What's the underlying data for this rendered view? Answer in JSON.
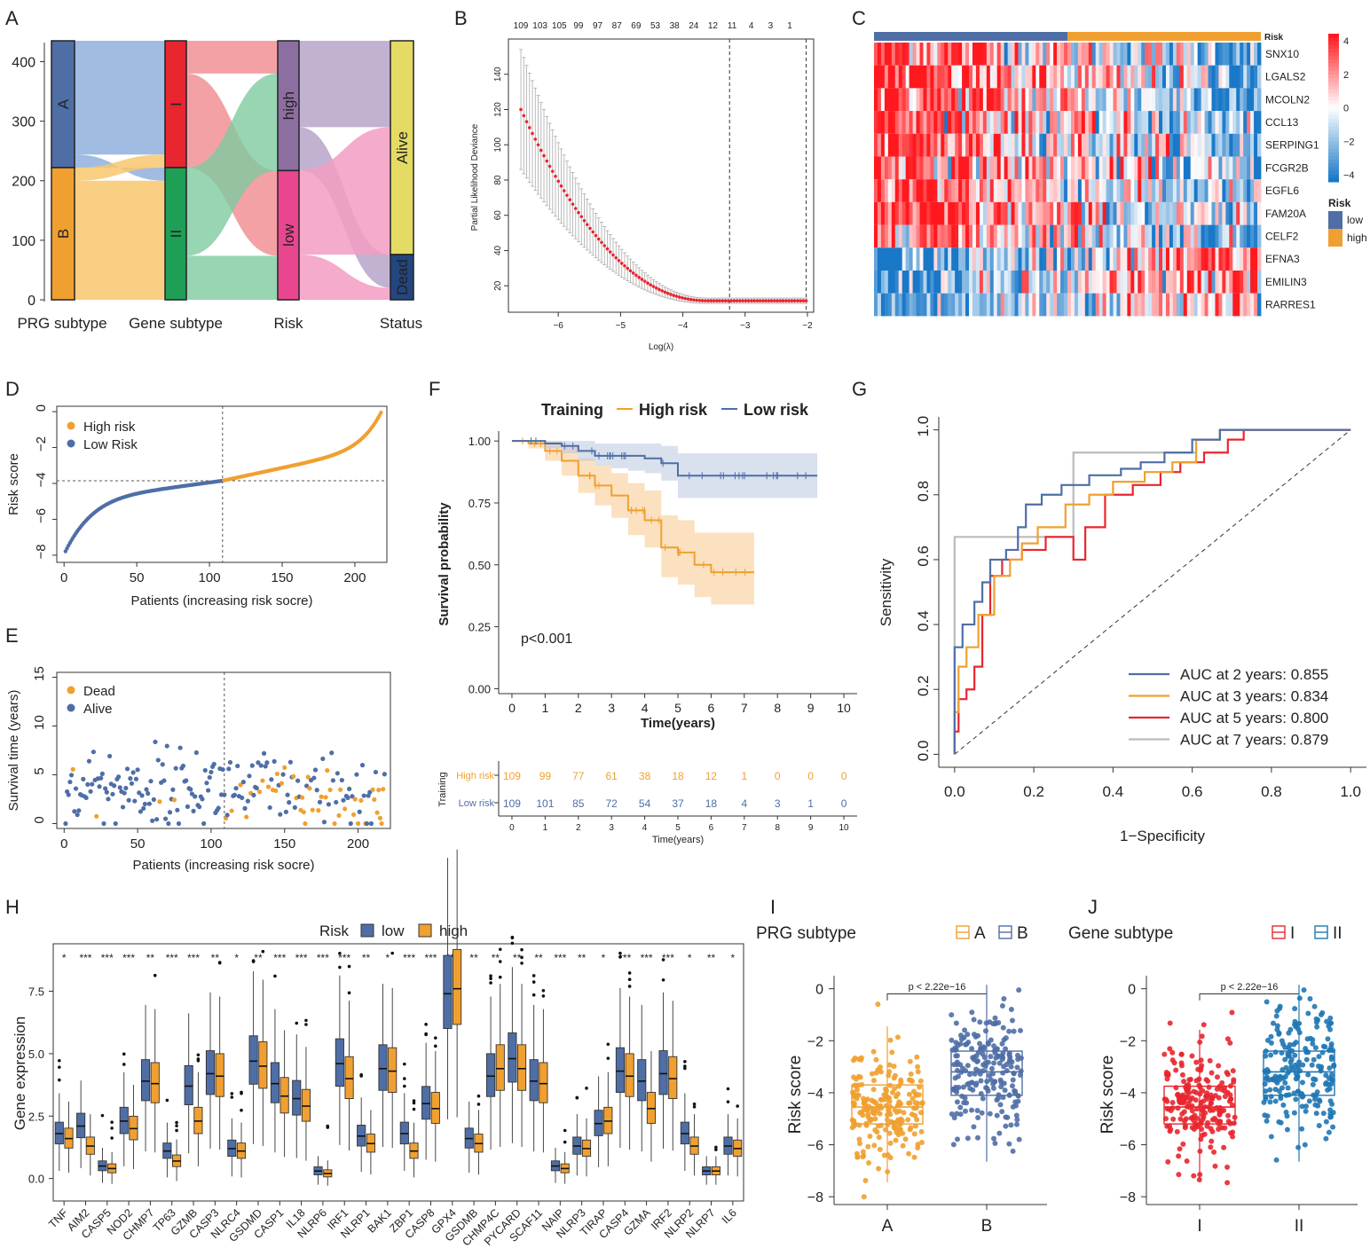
{
  "colors": {
    "orange": "#F0A030",
    "blue": "#4F6EA6",
    "red": "#E8262F",
    "green": "#1F9E56",
    "gray": "#BBBBBB",
    "purple": "#8C6FA0",
    "pink": "#E8478F",
    "yellow": "#E4DB64",
    "navy": "#23467F",
    "lightblue": "#1F77B4"
  },
  "chart_data": [
    {
      "panel": "A",
      "type": "sankey",
      "axes": [
        "PRG subtype",
        "Gene subtype",
        "Risk",
        "Status"
      ],
      "ylim": [
        0,
        435
      ],
      "yticks": [
        0,
        100,
        200,
        300,
        400
      ],
      "nodes": {
        "PRG subtype": [
          {
            "name": "A",
            "value": 213
          },
          {
            "name": "B",
            "value": 222
          }
        ],
        "Gene subtype": [
          {
            "name": "I",
            "value": 213
          },
          {
            "name": "II",
            "value": 222
          }
        ],
        "Risk": [
          {
            "name": "high",
            "value": 218
          },
          {
            "name": "low",
            "value": 217
          }
        ],
        "Status": [
          {
            "name": "Alive",
            "value": 359
          },
          {
            "name": "Dead",
            "value": 76
          }
        ]
      }
    },
    {
      "panel": "B",
      "type": "line",
      "title": "",
      "xlabel": "Log(λ)",
      "ylabel": "Partial Likelihood Deviance",
      "xlim": [
        -6.8,
        -1.9
      ],
      "ylim": [
        5,
        160
      ],
      "xticks": [
        -6,
        -5,
        -4,
        -3,
        -2
      ],
      "yticks": [
        20,
        40,
        60,
        80,
        100,
        120,
        140
      ],
      "top_labels": [
        "109",
        "103",
        "105",
        "99",
        "97",
        "87",
        "69",
        "53",
        "38",
        "24",
        "12",
        "11",
        "4",
        "3",
        "1"
      ],
      "vlines": [
        -3.25,
        -2.02
      ],
      "curve": {
        "x_start": -6.6,
        "x_end": -2.02,
        "y_start": 120,
        "y_end": 11.5
      }
    },
    {
      "panel": "C",
      "type": "heatmap",
      "genes": [
        "SNX10",
        "LGALS2",
        "MCOLN2",
        "CCL13",
        "SERPING1",
        "FCGR2B",
        "EGFL6",
        "FAM20A",
        "CELF2",
        "EFNA3",
        "EMILIN3",
        "RARRES1"
      ],
      "annotation_label": "Risk",
      "legend_title": "Risk",
      "legend_items": [
        "low",
        "high"
      ],
      "scale": [
        "4",
        "2",
        "0",
        "−2",
        "−4"
      ]
    },
    {
      "panel": "D",
      "type": "scatter",
      "xlabel": "Patients (increasing risk socre)",
      "ylabel": "Risk score",
      "xlim": [
        -5,
        222
      ],
      "ylim": [
        -8.4,
        0.3
      ],
      "xticks": [
        0,
        50,
        100,
        150,
        200
      ],
      "yticks": [
        0,
        -2,
        -4,
        -6,
        -8
      ],
      "cutoff_x": 109,
      "cutoff_y": -3.85,
      "legend": [
        "High risk",
        "Low Risk"
      ]
    },
    {
      "panel": "E",
      "type": "scatter",
      "xlabel": "Patients (increasing risk socre)",
      "ylabel": "Survival time (years)",
      "xlim": [
        -5,
        222
      ],
      "ylim": [
        -0.5,
        15.5
      ],
      "xticks": [
        0,
        50,
        100,
        150,
        200
      ],
      "yticks": [
        0,
        5,
        10,
        15
      ],
      "cutoff_x": 109,
      "legend": [
        "Dead",
        "Alive"
      ]
    },
    {
      "panel": "F",
      "type": "line",
      "legend_title": "Training",
      "legend": [
        "High risk",
        "Low risk"
      ],
      "xlabel": "Time(years)",
      "ylabel": "Survival probability",
      "xlim": [
        -0.4,
        10.4
      ],
      "ylim": [
        -0.02,
        1.04
      ],
      "xticks": [
        0,
        1,
        2,
        3,
        4,
        5,
        6,
        7,
        8,
        9,
        10
      ],
      "yticks": [
        "0.00",
        "0.25",
        "0.50",
        "0.75",
        "1.00"
      ],
      "pvalue": "p<0.001",
      "series": [
        {
          "name": "High risk",
          "x": [
            0,
            0.5,
            1,
            1.5,
            2,
            2.5,
            3,
            3.5,
            4,
            4.5,
            5,
            5.5,
            6,
            6.5,
            7,
            7.3
          ],
          "y": [
            1.0,
            0.99,
            0.96,
            0.92,
            0.86,
            0.82,
            0.78,
            0.72,
            0.68,
            0.57,
            0.55,
            0.5,
            0.47,
            0.47,
            0.47,
            0.47
          ],
          "lower": [
            1.0,
            0.97,
            0.92,
            0.86,
            0.79,
            0.74,
            0.69,
            0.62,
            0.57,
            0.45,
            0.42,
            0.37,
            0.34,
            0.34,
            0.34,
            0.34
          ],
          "upper": [
            1.0,
            1.0,
            1.0,
            0.98,
            0.93,
            0.9,
            0.87,
            0.83,
            0.8,
            0.7,
            0.68,
            0.63,
            0.63,
            0.63,
            0.63,
            0.63
          ]
        },
        {
          "name": "Low risk",
          "x": [
            0,
            0.5,
            1,
            1.5,
            2,
            2.5,
            3,
            3.5,
            4,
            4.5,
            5,
            5.5,
            6,
            7,
            8,
            9,
            9.2
          ],
          "y": [
            1.0,
            1.0,
            0.99,
            0.98,
            0.96,
            0.94,
            0.94,
            0.94,
            0.93,
            0.91,
            0.86,
            0.86,
            0.86,
            0.86,
            0.86,
            0.86,
            0.86
          ],
          "lower": [
            1.0,
            1.0,
            0.97,
            0.95,
            0.92,
            0.9,
            0.89,
            0.88,
            0.87,
            0.84,
            0.77,
            0.77,
            0.77,
            0.77,
            0.77,
            0.77,
            0.77
          ],
          "upper": [
            1.0,
            1.0,
            1.0,
            1.0,
            1.0,
            0.99,
            0.99,
            0.99,
            0.99,
            0.98,
            0.95,
            0.95,
            0.95,
            0.95,
            0.95,
            0.95,
            0.95
          ]
        }
      ],
      "risk_table": {
        "title": "Training",
        "xlabel": "Time(years)",
        "rows": [
          {
            "label": "High risk",
            "values": [
              "109",
              "99",
              "77",
              "61",
              "38",
              "18",
              "12",
              "1",
              "0",
              "0",
              "0"
            ]
          },
          {
            "label": "Low risk",
            "values": [
              "109",
              "101",
              "85",
              "72",
              "54",
              "37",
              "18",
              "4",
              "3",
              "1",
              "0"
            ]
          }
        ]
      }
    },
    {
      "panel": "G",
      "type": "line",
      "xlabel": "1−Specificity",
      "ylabel": "Sensitivity",
      "xlim": [
        -0.04,
        1.04
      ],
      "ylim": [
        -0.04,
        1.04
      ],
      "xticks": [
        "0.0",
        "0.2",
        "0.4",
        "0.6",
        "0.8",
        "1.0"
      ],
      "yticks": [
        "0.0",
        "0.2",
        "0.4",
        "0.6",
        "0.8",
        "1.0"
      ],
      "series": [
        {
          "name": "AUC at 2 years: 0.855",
          "x": [
            0,
            0,
            0.02,
            0.02,
            0.05,
            0.05,
            0.07,
            0.07,
            0.09,
            0.09,
            0.13,
            0.13,
            0.16,
            0.16,
            0.18,
            0.18,
            0.22,
            0.22,
            0.27,
            0.27,
            0.34,
            0.34,
            0.42,
            0.42,
            0.47,
            0.47,
            0.53,
            0.53,
            0.6,
            0.6,
            0.67,
            0.67,
            1
          ],
          "y": [
            0,
            0.33,
            0.33,
            0.4,
            0.4,
            0.47,
            0.47,
            0.53,
            0.53,
            0.6,
            0.6,
            0.63,
            0.63,
            0.7,
            0.7,
            0.77,
            0.77,
            0.8,
            0.8,
            0.83,
            0.83,
            0.86,
            0.86,
            0.88,
            0.88,
            0.9,
            0.9,
            0.93,
            0.93,
            0.97,
            0.97,
            1,
            1
          ]
        },
        {
          "name": "AUC at 3 years: 0.834",
          "x": [
            0,
            0,
            0.01,
            0.01,
            0.03,
            0.03,
            0.06,
            0.06,
            0.1,
            0.1,
            0.14,
            0.14,
            0.17,
            0.17,
            0.21,
            0.21,
            0.28,
            0.28,
            0.34,
            0.34,
            0.4,
            0.4,
            0.48,
            0.48,
            0.55,
            0.55,
            0.61,
            0.61,
            0.67,
            0.67,
            1
          ],
          "y": [
            0,
            0.13,
            0.13,
            0.27,
            0.27,
            0.33,
            0.33,
            0.43,
            0.43,
            0.55,
            0.55,
            0.6,
            0.6,
            0.65,
            0.65,
            0.7,
            0.7,
            0.77,
            0.77,
            0.8,
            0.8,
            0.84,
            0.84,
            0.87,
            0.87,
            0.9,
            0.9,
            0.97,
            0.97,
            1,
            1
          ]
        },
        {
          "name": "AUC at 5 years: 0.800",
          "x": [
            0,
            0,
            0.01,
            0.01,
            0.03,
            0.03,
            0.05,
            0.05,
            0.07,
            0.07,
            0.09,
            0.09,
            0.12,
            0.12,
            0.17,
            0.17,
            0.23,
            0.23,
            0.3,
            0.3,
            0.33,
            0.33,
            0.38,
            0.38,
            0.45,
            0.45,
            0.52,
            0.52,
            0.57,
            0.57,
            0.63,
            0.63,
            0.69,
            0.69,
            0.73,
            0.73,
            1
          ],
          "y": [
            0,
            0.07,
            0.07,
            0.17,
            0.17,
            0.2,
            0.2,
            0.27,
            0.27,
            0.43,
            0.43,
            0.55,
            0.55,
            0.6,
            0.6,
            0.63,
            0.63,
            0.67,
            0.67,
            0.6,
            0.6,
            0.7,
            0.7,
            0.8,
            0.8,
            0.83,
            0.83,
            0.87,
            0.87,
            0.9,
            0.9,
            0.93,
            0.93,
            0.97,
            0.97,
            1,
            1
          ]
        },
        {
          "name": "AUC at 7 years: 0.879",
          "x": [
            0,
            0,
            0.3,
            0.3,
            0.33,
            0.33,
            0.61,
            0.61,
            0.67,
            0.67,
            1
          ],
          "y": [
            0,
            0.67,
            0.67,
            0.93,
            0.93,
            0.93,
            0.93,
            0.97,
            0.97,
            1,
            1
          ]
        }
      ]
    },
    {
      "panel": "H",
      "type": "boxplot",
      "legend_title": "Risk",
      "legend": [
        "low",
        "high"
      ],
      "ylabel": "Gene expression",
      "ylim": [
        -0.9,
        9.4
      ],
      "yticks": [
        "0.0",
        "2.5",
        "5.0",
        "7.5"
      ],
      "genes": [
        "TNF",
        "AIM2",
        "CASP5",
        "NOD2",
        "CHMP7",
        "TP63",
        "GZMB",
        "CASP3",
        "NLRC4",
        "GSDMD",
        "CASP1",
        "IL18",
        "NLRP6",
        "IRF1",
        "NLRP1",
        "BAK1",
        "ZBP1",
        "CASP8",
        "GPX4",
        "GSDMB",
        "CHMP4C",
        "PYCARD",
        "SCAF11",
        "NAIP",
        "NLRP3",
        "TIRAP",
        "CASP4",
        "GZMA",
        "IRF2",
        "NLRP2",
        "NLRP7",
        "IL6"
      ],
      "signif": [
        "*",
        "***",
        "***",
        "***",
        "**",
        "***",
        "***",
        "**",
        "*",
        "**",
        "***",
        "***",
        "***",
        "***",
        "**",
        "*",
        "***",
        "***",
        "***",
        "**",
        "**",
        "**",
        "**",
        "***",
        "**",
        "*",
        "***",
        "***",
        "***",
        "*",
        "**",
        "*"
      ],
      "low_median": [
        1.8,
        2.1,
        0.5,
        2.3,
        3.9,
        1.1,
        3.7,
        4.2,
        1.2,
        4.7,
        3.8,
        3.2,
        0.3,
        4.6,
        1.7,
        4.4,
        1.8,
        3.0,
        7.4,
        1.6,
        4.1,
        4.8,
        3.9,
        0.5,
        1.3,
        2.2,
        4.3,
        3.9,
        4.2,
        1.8,
        0.3,
        1.3
      ],
      "high_median": [
        1.6,
        1.3,
        0.4,
        2.0,
        3.8,
        0.7,
        2.3,
        4.1,
        1.1,
        4.5,
        3.3,
        2.9,
        0.2,
        4.0,
        1.4,
        4.3,
        1.1,
        2.8,
        7.6,
        1.4,
        4.4,
        4.4,
        3.8,
        0.4,
        1.2,
        2.3,
        4.1,
        2.8,
        4.0,
        1.3,
        0.3,
        1.2
      ]
    },
    {
      "panel": "I",
      "type": "boxplot",
      "legend_title": "PRG subtype",
      "categories": [
        "A",
        "B"
      ],
      "ylabel": "Risk score",
      "ylim": [
        -8.3,
        0.5
      ],
      "yticks": [
        "0",
        "−2",
        "−4",
        "−6",
        "−8"
      ],
      "pvalue": "p < 2.22e−16",
      "medians": [
        -4.55,
        -3.2
      ],
      "q1": [
        -5.2,
        -4.1
      ],
      "q3": [
        -3.7,
        -2.4
      ]
    },
    {
      "panel": "J",
      "type": "boxplot",
      "legend_title": "Gene subtype",
      "categories": [
        "I",
        "II"
      ],
      "ylabel": "Risk score",
      "ylim": [
        -8.3,
        0.5
      ],
      "yticks": [
        "0",
        "−2",
        "−4",
        "−6",
        "−8"
      ],
      "pvalue": "p < 2.22e−16",
      "medians": [
        -4.55,
        -3.2
      ],
      "q1": [
        -5.2,
        -4.1
      ],
      "q3": [
        -3.75,
        -2.4
      ]
    }
  ],
  "panel_letters": [
    "A",
    "B",
    "C",
    "D",
    "E",
    "F",
    "G",
    "H",
    "I",
    "J"
  ]
}
